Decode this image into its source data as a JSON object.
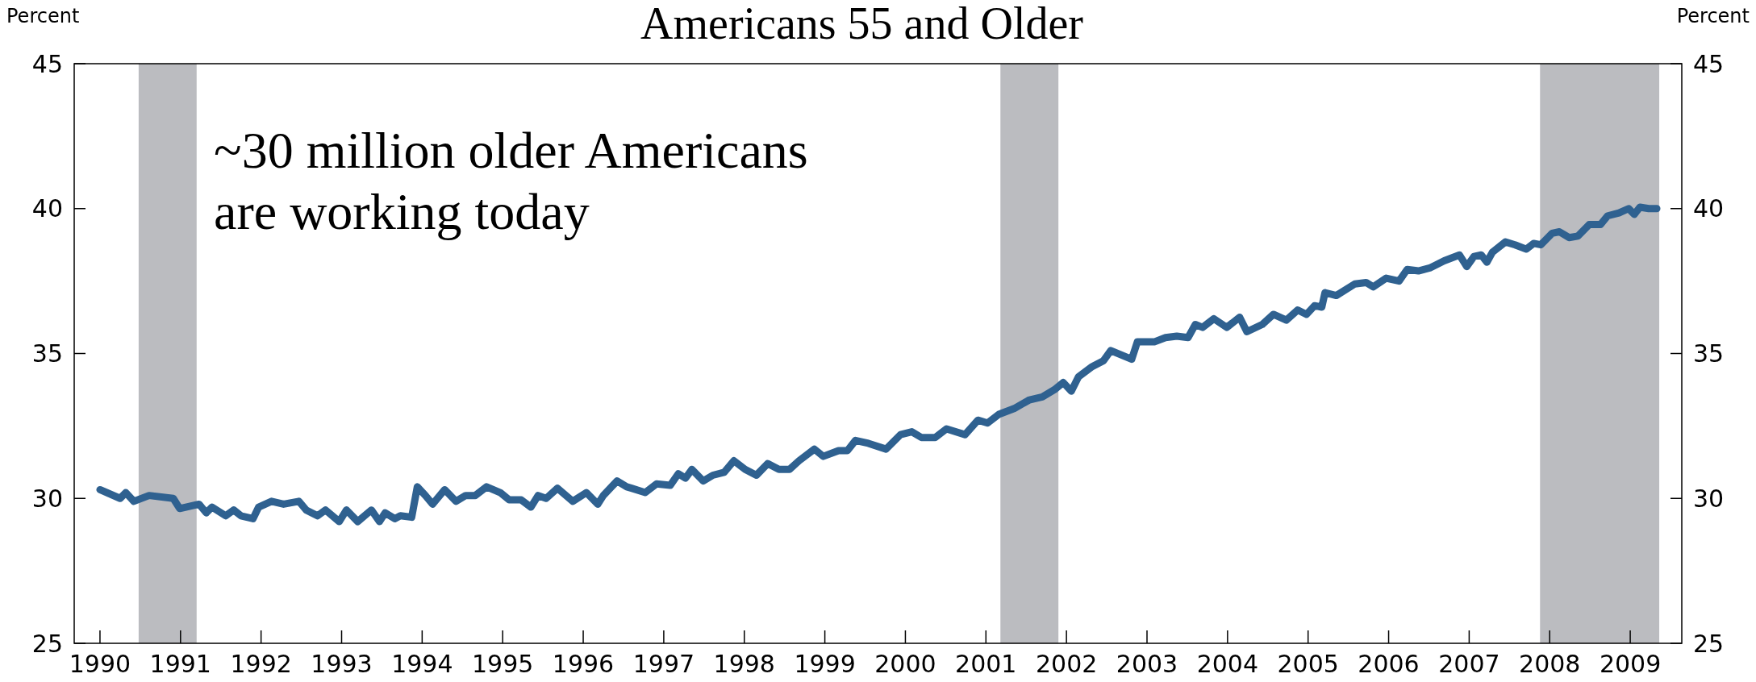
{
  "chart_data": {
    "type": "line",
    "title": "Americans 55 and Older",
    "ylabel": "Percent",
    "y2label": "Percent",
    "annotations": [
      "~30 million older Americans\nare working today"
    ],
    "xlim": [
      1989.68,
      2009.64
    ],
    "xticks": [
      {
        "value": 1990,
        "label": "1990"
      },
      {
        "value": 1991,
        "label": "1991"
      },
      {
        "value": 1992,
        "label": "1992"
      },
      {
        "value": 1993,
        "label": "1993"
      },
      {
        "value": 1994,
        "label": "1994"
      },
      {
        "value": 1995,
        "label": "1995"
      },
      {
        "value": 1996,
        "label": "1996"
      },
      {
        "value": 1997,
        "label": "1997"
      },
      {
        "value": 1998,
        "label": "1998"
      },
      {
        "value": 1999,
        "label": "1999"
      },
      {
        "value": 2000,
        "label": "2000"
      },
      {
        "value": 2001,
        "label": "2001"
      },
      {
        "value": 2002,
        "label": "2002"
      },
      {
        "value": 2003,
        "label": "2003"
      },
      {
        "value": 2004,
        "label": "2004"
      },
      {
        "value": 2005,
        "label": "2005"
      },
      {
        "value": 2006,
        "label": "2006"
      },
      {
        "value": 2007,
        "label": "2007"
      },
      {
        "value": 2008,
        "label": "2008"
      },
      {
        "value": 2009,
        "label": "2009"
      }
    ],
    "ylim": [
      25,
      45
    ],
    "yticks": [
      25,
      30,
      35,
      40,
      45
    ],
    "y2lim": [
      25,
      45
    ],
    "y2ticks": [
      25,
      30,
      35,
      40,
      45
    ],
    "grid": false,
    "marker": "none",
    "line_style": "solid",
    "bands": [
      {
        "axis": "x",
        "from": 1990.48,
        "to": 1991.2,
        "color": "#bbbcc0"
      },
      {
        "axis": "x",
        "from": 2001.18,
        "to": 2001.9,
        "color": "#bbbcc0"
      },
      {
        "axis": "x",
        "from": 2007.88,
        "to": 2009.36,
        "color": "#bbbcc0"
      }
    ],
    "series": [
      {
        "color": "#2f6190",
        "x": [
          1990.0,
          1990.25,
          1990.32,
          1990.42,
          1990.61,
          1990.91,
          1990.99,
          1991.23,
          1991.32,
          1991.39,
          1991.56,
          1991.66,
          1991.75,
          1991.9,
          1991.97,
          1992.13,
          1992.28,
          1992.47,
          1992.56,
          1992.7,
          1992.8,
          1992.97,
          1993.06,
          1993.2,
          1993.37,
          1993.47,
          1993.54,
          1993.66,
          1993.73,
          1993.87,
          1993.94,
          1994.04,
          1994.13,
          1994.28,
          1994.42,
          1994.54,
          1994.66,
          1994.8,
          1994.97,
          1995.08,
          1995.23,
          1995.35,
          1995.44,
          1995.54,
          1995.68,
          1995.87,
          1996.04,
          1996.18,
          1996.25,
          1996.42,
          1996.54,
          1996.6,
          1996.77,
          1996.91,
          1997.08,
          1997.18,
          1997.27,
          1997.35,
          1997.49,
          1997.61,
          1997.75,
          1997.87,
          1998.01,
          1998.15,
          1998.29,
          1998.43,
          1998.56,
          1998.68,
          1998.87,
          1998.98,
          1999.17,
          1999.28,
          1999.38,
          1999.54,
          1999.76,
          1999.94,
          2000.08,
          2000.2,
          2000.37,
          2000.51,
          2000.74,
          2000.9,
          2001.02,
          2001.16,
          2001.35,
          2001.54,
          2001.7,
          2001.85,
          2001.96,
          2002.06,
          2002.15,
          2002.32,
          2002.46,
          2002.55,
          2002.81,
          2002.88,
          2003.09,
          2003.23,
          2003.37,
          2003.51,
          2003.6,
          2003.69,
          2003.83,
          2003.99,
          2004.15,
          2004.24,
          2004.43,
          2004.57,
          2004.73,
          2004.87,
          2004.98,
          2005.08,
          2005.17,
          2005.21,
          2005.35,
          2005.58,
          2005.72,
          2005.81,
          2005.97,
          2006.13,
          2006.23,
          2006.37,
          2006.51,
          2006.69,
          2006.88,
          2006.97,
          2007.06,
          2007.15,
          2007.22,
          2007.29,
          2007.45,
          2007.57,
          2007.71,
          2007.8,
          2007.89,
          2008.03,
          2008.12,
          2008.24,
          2008.35,
          2008.49,
          2008.63,
          2008.72,
          2008.86,
          2008.98,
          2009.05,
          2009.12,
          2009.23,
          2009.33
        ],
        "values": [
          30.3,
          30.0,
          30.2,
          29.9,
          30.1,
          30.0,
          29.65,
          29.8,
          29.5,
          29.7,
          29.4,
          29.6,
          29.4,
          29.3,
          29.7,
          29.9,
          29.8,
          29.9,
          29.6,
          29.4,
          29.6,
          29.2,
          29.6,
          29.2,
          29.6,
          29.2,
          29.5,
          29.3,
          29.4,
          29.35,
          30.4,
          30.1,
          29.8,
          30.3,
          29.9,
          30.1,
          30.1,
          30.4,
          30.2,
          29.95,
          29.95,
          29.7,
          30.1,
          30.0,
          30.35,
          29.9,
          30.2,
          29.8,
          30.1,
          30.6,
          30.4,
          30.35,
          30.2,
          30.5,
          30.45,
          30.85,
          30.7,
          31.0,
          30.6,
          30.8,
          30.9,
          31.3,
          31.0,
          30.8,
          31.2,
          31.0,
          31.0,
          31.3,
          31.7,
          31.45,
          31.65,
          31.65,
          32.0,
          31.9,
          31.7,
          32.2,
          32.3,
          32.1,
          32.1,
          32.4,
          32.2,
          32.7,
          32.6,
          32.9,
          33.1,
          33.4,
          33.5,
          33.75,
          34.0,
          33.7,
          34.2,
          34.55,
          34.75,
          35.1,
          34.8,
          35.4,
          35.4,
          35.55,
          35.6,
          35.55,
          36.0,
          35.9,
          36.2,
          35.9,
          36.25,
          35.75,
          36.0,
          36.35,
          36.15,
          36.5,
          36.35,
          36.65,
          36.6,
          37.1,
          37.0,
          37.4,
          37.45,
          37.3,
          37.6,
          37.5,
          37.9,
          37.85,
          37.95,
          38.2,
          38.4,
          38.0,
          38.35,
          38.4,
          38.15,
          38.5,
          38.85,
          38.75,
          38.6,
          38.8,
          38.75,
          39.15,
          39.2,
          39.0,
          39.05,
          39.45,
          39.45,
          39.75,
          39.85,
          40.0,
          39.8,
          40.05,
          40.0,
          40.0
        ]
      }
    ]
  }
}
